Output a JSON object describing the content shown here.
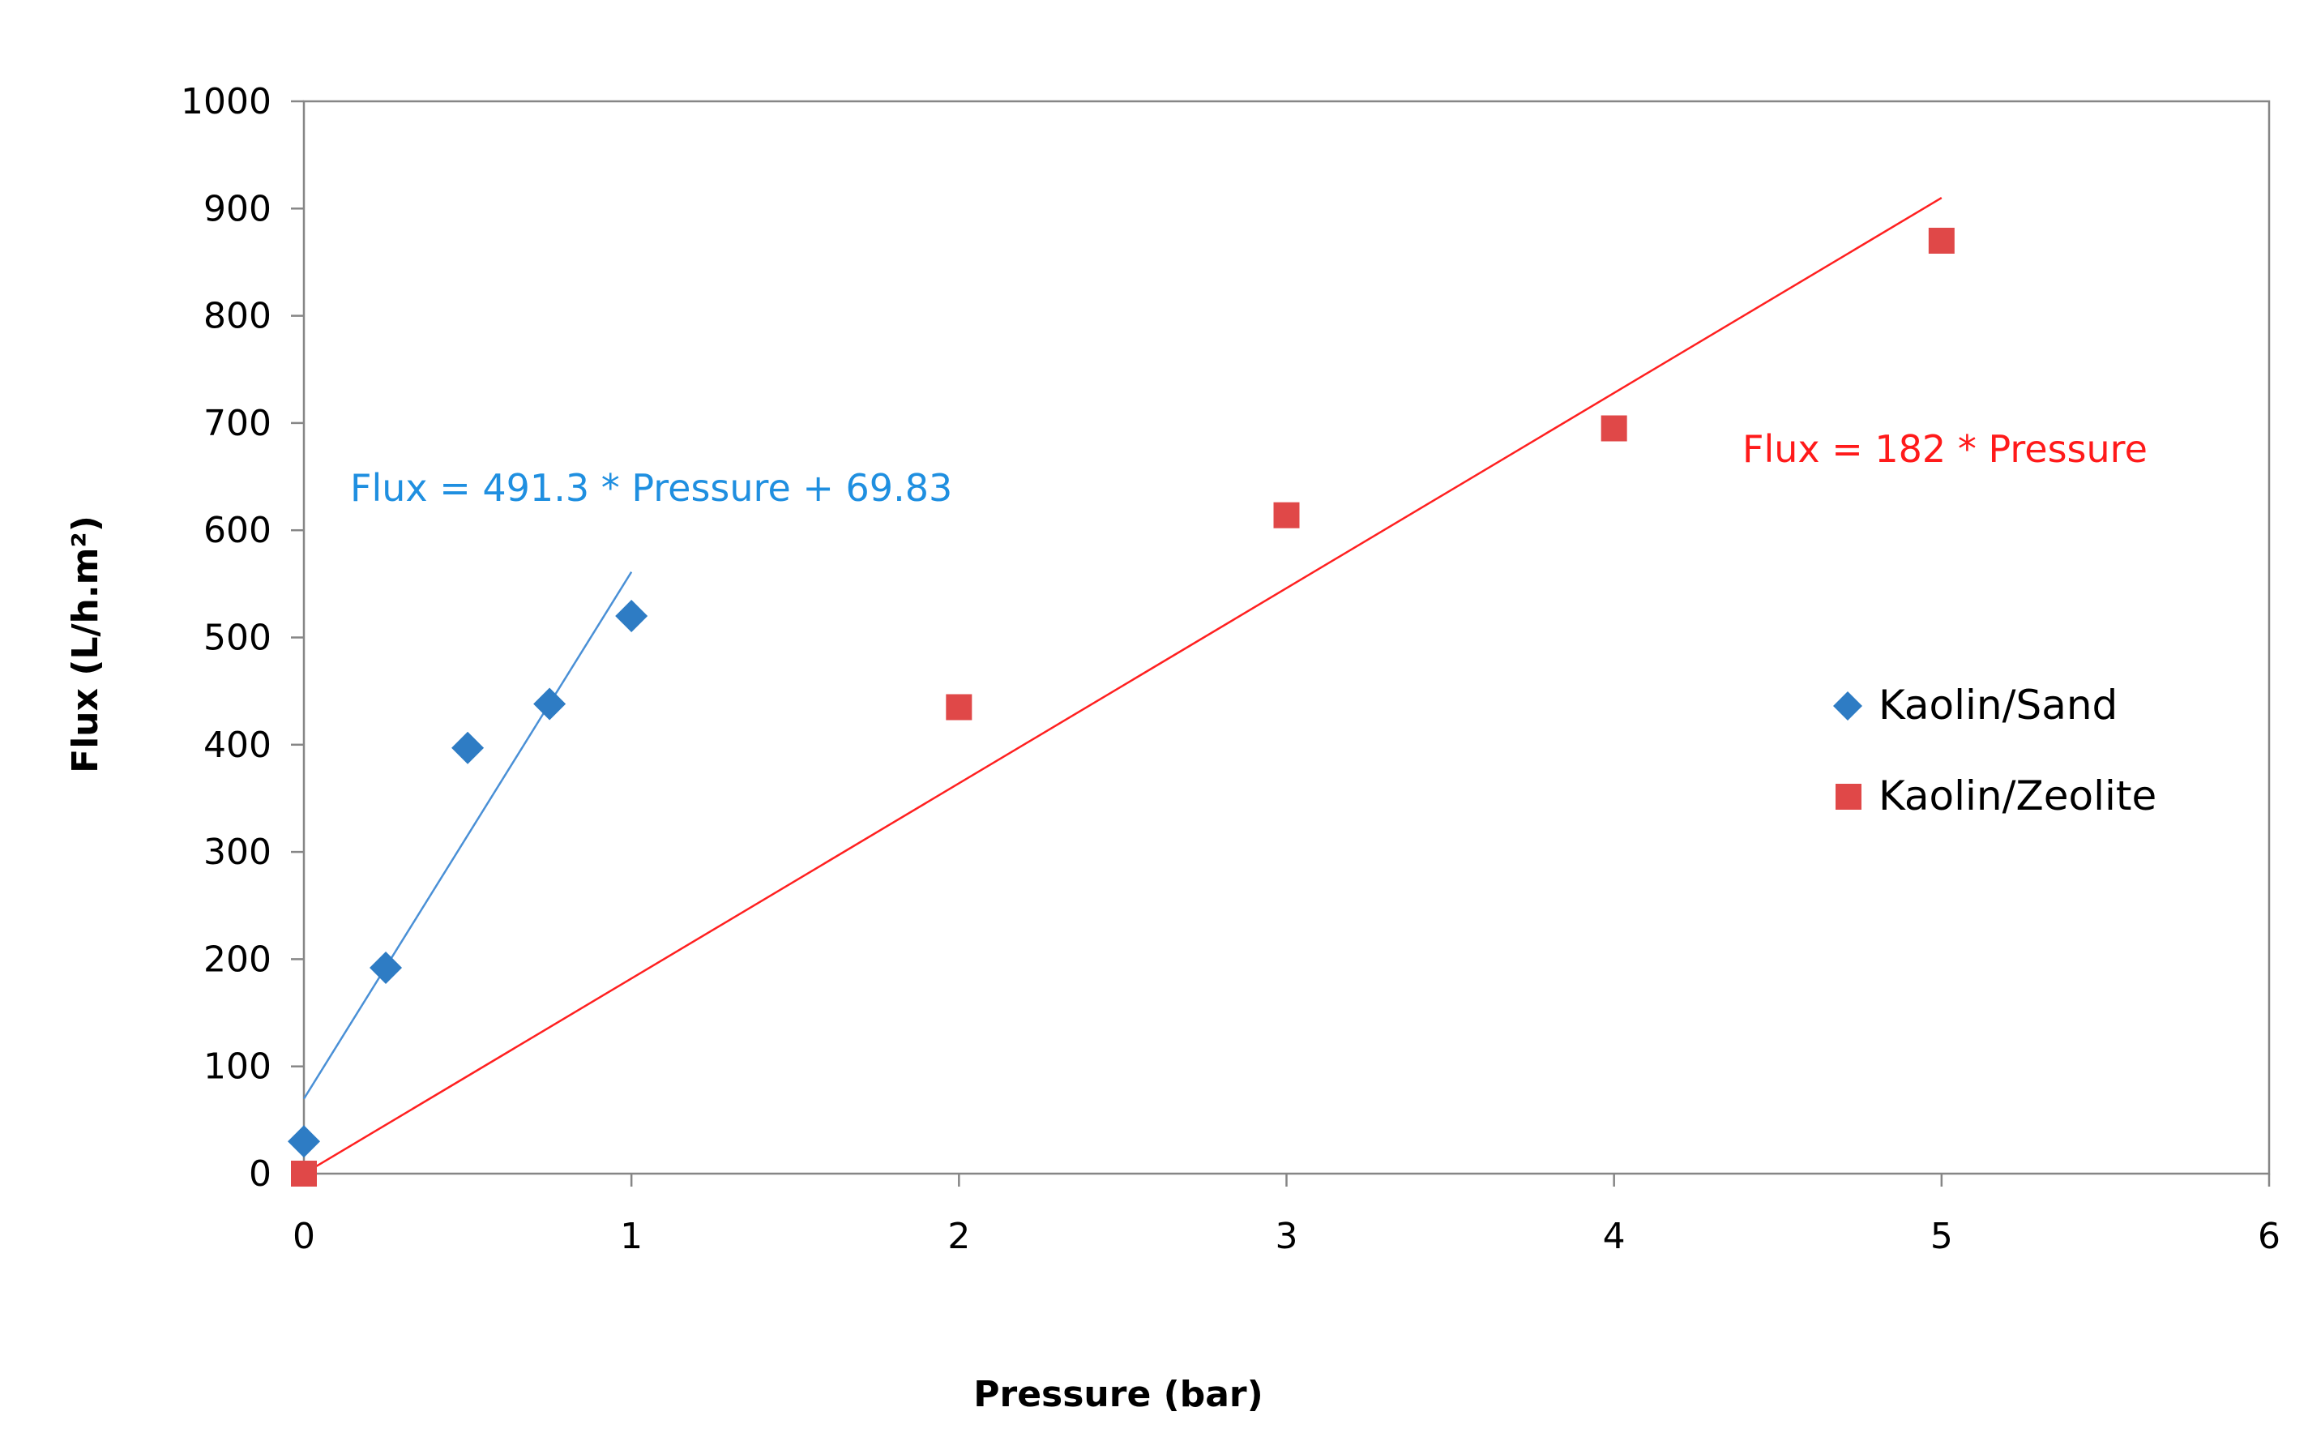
{
  "chart_data": {
    "type": "scatter",
    "title": "",
    "xlabel": "Pressure (bar)",
    "ylabel": "Flux (L/h.m²)",
    "xlim": [
      0,
      6
    ],
    "ylim": [
      0,
      1000
    ],
    "xticks": [
      0,
      1,
      2,
      3,
      4,
      5,
      6
    ],
    "yticks": [
      0,
      100,
      200,
      300,
      400,
      500,
      600,
      700,
      800,
      900,
      1000
    ],
    "grid": false,
    "legend_position": "right",
    "series": [
      {
        "name": "Kaolin/Sand",
        "marker": "diamond",
        "color": "#2E7CC4",
        "x": [
          0,
          0.25,
          0.5,
          0.75,
          1.0
        ],
        "y": [
          30,
          192,
          397,
          438,
          520
        ],
        "trendline": {
          "slope": 491.3,
          "intercept": 69.83,
          "x_range": [
            0,
            1.0
          ]
        },
        "equation": "Flux = 491.3 * Pressure + 69.83"
      },
      {
        "name": "Kaolin/Zeolite",
        "marker": "square",
        "color": "#E04848",
        "x": [
          0,
          2,
          3,
          4,
          5
        ],
        "y": [
          0,
          435,
          614,
          695,
          870
        ],
        "trendline": {
          "slope": 182,
          "intercept": 0,
          "x_range": [
            0,
            5
          ]
        },
        "equation": "Flux = 182 * Pressure"
      }
    ],
    "colors": {
      "axis": "#868686",
      "sand_trend": "#4A90D6",
      "zeolite_trend": "#FF2020",
      "sand_text": "#1F8FE0",
      "zeolite_text": "#FF1A1A"
    }
  }
}
